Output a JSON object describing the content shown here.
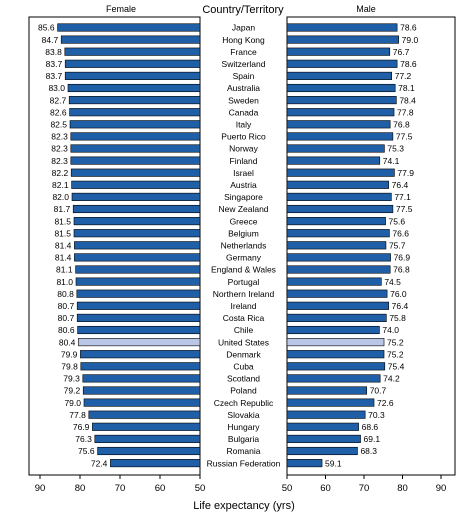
{
  "chart_data": {
    "type": "bar",
    "header_left": "Female",
    "header_center": "Country/Territory",
    "header_right": "Male",
    "xlabel": "Life expectancy (yrs)",
    "xlim": [
      50,
      90
    ],
    "x_ticks": [
      "90",
      "80",
      "70",
      "60",
      "50",
      "50",
      "60",
      "70",
      "80",
      "90"
    ],
    "highlight_category": "United States",
    "colors": {
      "bar": "#1f5fa8",
      "highlight": "#b9c6e6",
      "edge": "#000000"
    },
    "categories": [
      "Japan",
      "Hong Kong",
      "France",
      "Switzerland",
      "Spain",
      "Australia",
      "Sweden",
      "Canada",
      "Italy",
      "Puerto Rico",
      "Norway",
      "Finland",
      "Israel",
      "Austria",
      "Singapore",
      "New Zealand",
      "Greece",
      "Belgium",
      "Netherlands",
      "Germany",
      "England & Wales",
      "Portugal",
      "Northern Ireland",
      "Ireland",
      "Costa Rica",
      "Chile",
      "United States",
      "Denmark",
      "Cuba",
      "Scotland",
      "Poland",
      "Czech Republic",
      "Slovakia",
      "Hungary",
      "Bulgaria",
      "Romania",
      "Russian Federation"
    ],
    "series": [
      {
        "name": "Female",
        "values": [
          85.6,
          84.7,
          83.8,
          83.7,
          83.7,
          83.0,
          82.7,
          82.6,
          82.5,
          82.3,
          82.3,
          82.3,
          82.2,
          82.1,
          82.0,
          81.7,
          81.5,
          81.5,
          81.4,
          81.4,
          81.1,
          81.0,
          80.8,
          80.7,
          80.7,
          80.6,
          80.4,
          79.9,
          79.8,
          79.3,
          79.2,
          79.0,
          77.8,
          76.9,
          76.3,
          75.6,
          72.4
        ]
      },
      {
        "name": "Male",
        "values": [
          78.6,
          79.0,
          76.7,
          78.6,
          77.2,
          78.1,
          78.4,
          77.8,
          76.8,
          77.5,
          75.3,
          74.1,
          77.9,
          76.4,
          77.1,
          77.5,
          75.6,
          76.6,
          75.7,
          76.9,
          76.8,
          74.5,
          76.0,
          76.4,
          75.8,
          74.0,
          75.2,
          75.2,
          75.4,
          74.2,
          70.7,
          72.6,
          70.3,
          68.6,
          69.1,
          68.3,
          59.1
        ]
      }
    ],
    "value_labels": {
      "female": [
        "85.6",
        "84.7",
        "83.8",
        "83.7",
        "83.7",
        "83.0",
        "82.7",
        "82.6",
        "82.5",
        "82.3",
        "82.3",
        "82.3",
        "82.2",
        "82.1",
        "82.0",
        "81.7",
        "81.5",
        "81.5",
        "81.4",
        "81.4",
        "81.1",
        "81.0",
        "80.8",
        "80.7",
        "80.7",
        "80.6",
        "80.4",
        "79.9",
        "79.8",
        "79.3",
        "79.2",
        "79.0",
        "77.8",
        "76.9",
        "76.3",
        "75.6",
        "72.4"
      ],
      "male": [
        "78.6",
        "79.0",
        "76.7",
        "78.6",
        "77.2",
        "78.1",
        "78.4",
        "77.8",
        "76.8",
        "77.5",
        "75.3",
        "74.1",
        "77.9",
        "76.4",
        "77.1",
        "77.5",
        "75.6",
        "76.6",
        "75.7",
        "76.9",
        "76.8",
        "74.5",
        "76.0",
        "76.4",
        "75.8",
        "74.0",
        "75.2",
        "75.2",
        "75.4",
        "74.2",
        "70.7",
        "72.6",
        "70.3",
        "68.6",
        "69.1",
        "68.3",
        "59.1"
      ]
    }
  }
}
